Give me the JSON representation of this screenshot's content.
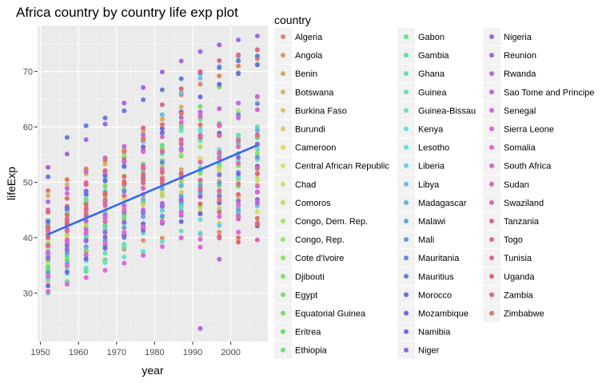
{
  "chart_data": {
    "type": "scatter",
    "title": "Africa country by country life exp plot",
    "xlabel": "year",
    "ylabel": "lifeExp",
    "xlim": [
      1949.25,
      2009.75
    ],
    "ylim": [
      21.25,
      78.3
    ],
    "x_ticks": [
      1950,
      1960,
      1970,
      1980,
      1990,
      2000
    ],
    "y_ticks": [
      30,
      40,
      50,
      60,
      70
    ],
    "years": [
      1952,
      1957,
      1962,
      1967,
      1972,
      1977,
      1982,
      1987,
      1992,
      1997,
      2002,
      2007
    ],
    "grid": true,
    "legend_title": "country",
    "legend_position": "right",
    "trend_line": {
      "method": "lm",
      "color": "#3366ff",
      "points": [
        {
          "x": 1952,
          "y": 40.6
        },
        {
          "x": 2007,
          "y": 56.7
        }
      ]
    },
    "series": [
      {
        "name": "Algeria",
        "values": [
          43.1,
          45.7,
          48.3,
          51.4,
          54.5,
          58.0,
          61.4,
          65.8,
          67.7,
          69.2,
          71.0,
          72.3
        ]
      },
      {
        "name": "Angola",
        "values": [
          30.0,
          32.0,
          34.0,
          36.0,
          37.9,
          39.5,
          39.9,
          39.9,
          40.6,
          41.0,
          41.0,
          42.7
        ]
      },
      {
        "name": "Benin",
        "values": [
          38.2,
          40.4,
          42.6,
          44.9,
          47.0,
          49.2,
          50.9,
          52.3,
          53.9,
          54.8,
          54.4,
          56.7
        ]
      },
      {
        "name": "Botswana",
        "values": [
          47.6,
          49.6,
          51.5,
          53.3,
          56.0,
          59.3,
          61.5,
          63.6,
          62.7,
          52.6,
          46.6,
          50.7
        ]
      },
      {
        "name": "Burkina Faso",
        "values": [
          32.0,
          34.9,
          37.8,
          40.7,
          43.6,
          46.1,
          48.1,
          49.6,
          50.3,
          50.3,
          50.7,
          52.3
        ]
      },
      {
        "name": "Burundi",
        "values": [
          39.0,
          40.5,
          42.0,
          43.5,
          44.1,
          45.9,
          47.5,
          48.2,
          44.7,
          45.3,
          47.4,
          49.6
        ]
      },
      {
        "name": "Cameroon",
        "values": [
          38.5,
          40.4,
          42.6,
          44.8,
          47.0,
          49.4,
          53.0,
          55.0,
          54.3,
          52.2,
          49.9,
          50.4
        ]
      },
      {
        "name": "Central African Republic",
        "values": [
          35.5,
          37.5,
          39.5,
          41.5,
          43.5,
          46.8,
          48.3,
          50.5,
          49.4,
          46.1,
          43.3,
          44.7
        ]
      },
      {
        "name": "Chad",
        "values": [
          38.1,
          39.9,
          41.7,
          43.6,
          45.6,
          47.4,
          49.5,
          51.1,
          51.7,
          51.6,
          50.5,
          50.7
        ]
      },
      {
        "name": "Comoros",
        "values": [
          40.7,
          42.5,
          44.5,
          46.5,
          48.9,
          50.9,
          52.9,
          54.9,
          57.9,
          60.7,
          62.9,
          65.2
        ]
      },
      {
        "name": "Congo, Dem. Rep.",
        "values": [
          39.1,
          40.7,
          42.1,
          44.1,
          45.9,
          47.8,
          47.8,
          47.4,
          45.5,
          42.6,
          45.0,
          46.5
        ]
      },
      {
        "name": "Congo, Rep.",
        "values": [
          42.1,
          45.1,
          48.4,
          52.0,
          54.9,
          55.6,
          56.7,
          57.5,
          56.4,
          52.96,
          52.97,
          55.3
        ]
      },
      {
        "name": "Cote d'Ivoire",
        "values": [
          40.5,
          42.5,
          44.9,
          47.4,
          49.8,
          52.4,
          53.98,
          54.7,
          52.0,
          47.99,
          46.8,
          48.3
        ]
      },
      {
        "name": "Djibouti",
        "values": [
          34.8,
          37.3,
          39.7,
          42.1,
          44.4,
          46.5,
          48.8,
          50.0,
          51.6,
          53.2,
          53.4,
          54.8
        ]
      },
      {
        "name": "Egypt",
        "values": [
          41.9,
          44.4,
          47.0,
          49.3,
          51.1,
          53.3,
          56.0,
          59.8,
          63.7,
          67.2,
          69.8,
          71.3
        ]
      },
      {
        "name": "Equatorial Guinea",
        "values": [
          34.5,
          35.98,
          37.5,
          38.99,
          40.5,
          42.0,
          43.7,
          45.7,
          47.5,
          48.2,
          49.3,
          51.6
        ]
      },
      {
        "name": "Eritrea",
        "values": [
          35.9,
          38.0,
          40.2,
          42.2,
          44.1,
          44.5,
          43.9,
          46.5,
          49.99,
          53.4,
          55.2,
          58.0
        ]
      },
      {
        "name": "Ethiopia",
        "values": [
          34.1,
          36.7,
          40.1,
          42.1,
          43.5,
          44.5,
          44.9,
          46.7,
          48.1,
          49.4,
          50.7,
          52.9
        ]
      },
      {
        "name": "Gabon",
        "values": [
          37.0,
          38.99,
          40.5,
          44.6,
          48.7,
          52.8,
          56.6,
          60.2,
          61.4,
          60.5,
          56.8,
          56.7
        ]
      },
      {
        "name": "Gambia",
        "values": [
          30.0,
          32.1,
          33.9,
          35.9,
          38.3,
          41.8,
          45.6,
          49.3,
          52.6,
          55.9,
          58.0,
          59.4
        ]
      },
      {
        "name": "Ghana",
        "values": [
          43.1,
          44.8,
          46.5,
          48.1,
          49.9,
          51.8,
          53.7,
          55.7,
          57.5,
          58.6,
          58.5,
          60.0
        ]
      },
      {
        "name": "Guinea",
        "values": [
          33.6,
          34.6,
          35.8,
          37.2,
          38.8,
          40.8,
          42.9,
          45.2,
          48.6,
          51.5,
          53.7,
          56.0
        ]
      },
      {
        "name": "Guinea-Bissau",
        "values": [
          32.5,
          33.5,
          34.5,
          35.5,
          36.5,
          37.5,
          39.3,
          41.2,
          43.3,
          44.9,
          45.5,
          46.4
        ]
      },
      {
        "name": "Kenya",
        "values": [
          42.3,
          44.7,
          47.9,
          50.7,
          53.6,
          56.2,
          58.8,
          59.3,
          59.3,
          54.4,
          50.99,
          54.1
        ]
      },
      {
        "name": "Lesotho",
        "values": [
          42.1,
          45.0,
          47.7,
          48.5,
          49.8,
          52.5,
          55.1,
          57.2,
          59.7,
          55.6,
          44.6,
          42.6
        ]
      },
      {
        "name": "Liberia",
        "values": [
          38.5,
          39.5,
          40.5,
          41.5,
          42.6,
          43.8,
          44.9,
          46.0,
          40.8,
          42.2,
          43.8,
          45.7
        ]
      },
      {
        "name": "Libya",
        "values": [
          42.7,
          45.3,
          47.8,
          50.2,
          52.8,
          57.4,
          62.2,
          66.2,
          68.8,
          70.9,
          72.7,
          73.95
        ]
      },
      {
        "name": "Madagascar",
        "values": [
          36.7,
          38.9,
          40.8,
          42.9,
          44.9,
          46.9,
          48.9,
          49.4,
          52.2,
          54.98,
          57.3,
          59.4
        ]
      },
      {
        "name": "Malawi",
        "values": [
          36.3,
          37.2,
          38.4,
          39.5,
          41.8,
          43.8,
          45.6,
          47.5,
          49.4,
          47.5,
          45.0,
          48.3
        ]
      },
      {
        "name": "Mali",
        "values": [
          33.7,
          35.3,
          36.9,
          38.5,
          40.0,
          41.7,
          43.9,
          46.4,
          48.4,
          49.9,
          51.8,
          54.5
        ]
      },
      {
        "name": "Mauritania",
        "values": [
          40.5,
          42.3,
          44.2,
          46.3,
          48.4,
          50.9,
          53.6,
          56.1,
          58.3,
          60.4,
          62.2,
          64.2
        ]
      },
      {
        "name": "Mauritius",
        "values": [
          50.99,
          58.1,
          60.2,
          61.6,
          62.9,
          64.9,
          66.7,
          68.7,
          69.7,
          70.7,
          71.95,
          72.8
        ]
      },
      {
        "name": "Morocco",
        "values": [
          42.9,
          45.4,
          47.9,
          50.3,
          52.9,
          55.7,
          59.7,
          62.7,
          65.4,
          67.7,
          69.6,
          71.2
        ]
      },
      {
        "name": "Mozambique",
        "values": [
          31.3,
          33.8,
          36.2,
          38.1,
          40.3,
          42.5,
          42.8,
          42.9,
          44.3,
          46.3,
          44.0,
          42.1
        ]
      },
      {
        "name": "Namibia",
        "values": [
          41.7,
          45.2,
          48.4,
          51.2,
          53.9,
          56.4,
          58.97,
          60.8,
          61.99,
          58.9,
          51.5,
          52.9
        ]
      },
      {
        "name": "Niger",
        "values": [
          37.4,
          38.6,
          39.5,
          40.1,
          40.5,
          41.3,
          42.6,
          44.6,
          47.4,
          51.3,
          54.5,
          56.9
        ]
      },
      {
        "name": "Nigeria",
        "values": [
          36.3,
          37.8,
          39.4,
          41.0,
          42.8,
          44.5,
          45.8,
          46.9,
          47.5,
          47.5,
          46.6,
          46.9
        ]
      },
      {
        "name": "Reunion",
        "values": [
          52.7,
          55.1,
          57.7,
          60.5,
          64.3,
          67.1,
          69.9,
          71.9,
          73.6,
          74.8,
          75.7,
          76.4
        ]
      },
      {
        "name": "Rwanda",
        "values": [
          40.0,
          41.5,
          43.0,
          44.1,
          44.6,
          45.0,
          46.2,
          44.0,
          23.6,
          36.1,
          43.4,
          46.2
        ]
      },
      {
        "name": "Sao Tome and Principe",
        "values": [
          46.5,
          48.9,
          51.9,
          54.4,
          56.5,
          58.6,
          60.4,
          61.7,
          62.7,
          63.3,
          64.3,
          65.5
        ]
      },
      {
        "name": "Senegal",
        "values": [
          37.3,
          39.3,
          41.5,
          43.6,
          45.8,
          48.9,
          52.4,
          55.8,
          58.2,
          60.2,
          61.6,
          63.1
        ]
      },
      {
        "name": "Sierra Leone",
        "values": [
          30.3,
          31.6,
          32.8,
          34.1,
          35.4,
          36.8,
          38.4,
          40.0,
          38.3,
          39.9,
          41.0,
          42.6
        ]
      },
      {
        "name": "Somalia",
        "values": [
          32.98,
          34.98,
          36.98,
          38.98,
          40.97,
          41.97,
          42.96,
          44.5,
          39.7,
          43.8,
          45.9,
          48.2
        ]
      },
      {
        "name": "South Africa",
        "values": [
          45.0,
          47.99,
          49.95,
          51.9,
          53.7,
          55.5,
          58.2,
          60.8,
          61.9,
          60.2,
          53.4,
          49.3
        ]
      },
      {
        "name": "Sudan",
        "values": [
          38.6,
          39.6,
          40.9,
          42.9,
          44.99,
          47.8,
          50.3,
          51.6,
          53.6,
          55.4,
          56.4,
          58.6
        ]
      },
      {
        "name": "Swaziland",
        "values": [
          41.4,
          43.4,
          44.99,
          46.6,
          49.6,
          52.5,
          55.6,
          57.7,
          58.5,
          54.3,
          43.9,
          39.6
        ]
      },
      {
        "name": "Tanzania",
        "values": [
          41.2,
          42.97,
          44.2,
          45.8,
          47.6,
          49.9,
          50.6,
          51.5,
          50.4,
          48.5,
          49.7,
          52.5
        ]
      },
      {
        "name": "Togo",
        "values": [
          38.6,
          41.2,
          43.9,
          46.8,
          49.8,
          52.9,
          55.5,
          56.9,
          58.1,
          58.4,
          57.6,
          58.4
        ]
      },
      {
        "name": "Tunisia",
        "values": [
          44.6,
          47.1,
          49.6,
          52.1,
          55.6,
          59.8,
          64.0,
          66.9,
          70.0,
          71.97,
          73.0,
          73.9
        ]
      },
      {
        "name": "Uganda",
        "values": [
          39.98,
          42.6,
          45.3,
          48.1,
          51.0,
          50.4,
          49.8,
          51.5,
          48.8,
          44.6,
          47.8,
          51.5
        ]
      },
      {
        "name": "Zambia",
        "values": [
          42.0,
          44.1,
          46.0,
          47.8,
          50.1,
          51.4,
          51.8,
          50.8,
          46.1,
          40.2,
          39.2,
          42.4
        ]
      },
      {
        "name": "Zimbabwe",
        "values": [
          48.5,
          50.5,
          52.4,
          54.0,
          55.6,
          57.7,
          60.4,
          62.4,
          60.4,
          46.8,
          39.99,
          43.5
        ]
      }
    ]
  }
}
